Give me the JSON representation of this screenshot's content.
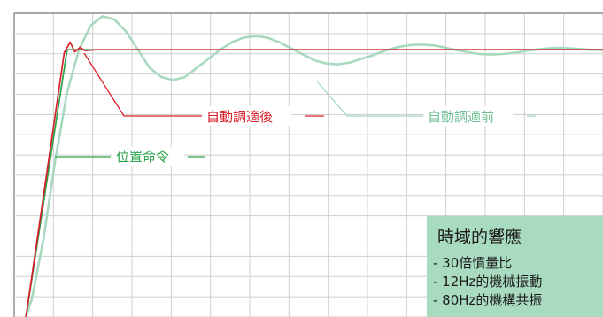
{
  "chart_data": {
    "type": "line",
    "xlim": [
      0,
      1
    ],
    "ylim": [
      0,
      1
    ],
    "grid": true,
    "series": [
      {
        "color": "#2aa14a",
        "points": [
          [
            0.02,
            0.0
          ],
          [
            0.09,
            0.88
          ],
          [
            1.0,
            0.88
          ]
        ]
      },
      {
        "color": "#d9202a",
        "points": [
          [
            0.02,
            0.0
          ],
          [
            0.085,
            0.87
          ],
          [
            0.095,
            0.905
          ],
          [
            0.103,
            0.873
          ],
          [
            0.112,
            0.888
          ],
          [
            0.12,
            0.877
          ],
          [
            0.14,
            0.88
          ],
          [
            1.0,
            0.88
          ]
        ]
      },
      {
        "color": "#a8d9bf",
        "points": [
          [
            0.02,
            0.0
          ],
          [
            0.03,
            0.06
          ],
          [
            0.05,
            0.26
          ],
          [
            0.07,
            0.52
          ],
          [
            0.09,
            0.74
          ],
          [
            0.11,
            0.88
          ],
          [
            0.13,
            0.96
          ],
          [
            0.15,
            0.99
          ],
          [
            0.17,
            0.98
          ],
          [
            0.19,
            0.94
          ],
          [
            0.21,
            0.88
          ],
          [
            0.23,
            0.82
          ],
          [
            0.25,
            0.79
          ],
          [
            0.27,
            0.78
          ],
          [
            0.29,
            0.79
          ],
          [
            0.31,
            0.82
          ],
          [
            0.33,
            0.85
          ],
          [
            0.35,
            0.88
          ],
          [
            0.37,
            0.905
          ],
          [
            0.39,
            0.92
          ],
          [
            0.41,
            0.925
          ],
          [
            0.43,
            0.92
          ],
          [
            0.45,
            0.905
          ],
          [
            0.47,
            0.885
          ],
          [
            0.49,
            0.865
          ],
          [
            0.51,
            0.845
          ],
          [
            0.53,
            0.835
          ],
          [
            0.55,
            0.832
          ],
          [
            0.57,
            0.838
          ],
          [
            0.59,
            0.85
          ],
          [
            0.61,
            0.862
          ],
          [
            0.63,
            0.877
          ],
          [
            0.65,
            0.888
          ],
          [
            0.67,
            0.895
          ],
          [
            0.69,
            0.897
          ],
          [
            0.71,
            0.895
          ],
          [
            0.73,
            0.888
          ],
          [
            0.75,
            0.879
          ],
          [
            0.77,
            0.872
          ],
          [
            0.79,
            0.866
          ],
          [
            0.81,
            0.864
          ],
          [
            0.83,
            0.866
          ],
          [
            0.85,
            0.87
          ],
          [
            0.87,
            0.876
          ],
          [
            0.89,
            0.881
          ],
          [
            0.91,
            0.885
          ],
          [
            0.93,
            0.886
          ],
          [
            0.95,
            0.884
          ],
          [
            0.97,
            0.881
          ],
          [
            0.99,
            0.879
          ],
          [
            1.0,
            0.879
          ]
        ]
      }
    ],
    "annotations": [
      {
        "text": "位置命令",
        "color": "#2aa14a"
      },
      {
        "text": "自動調適後",
        "color": "#d9202a"
      },
      {
        "text": "自動調適前",
        "color": "#6fbf94"
      }
    ],
    "info_box": {
      "title": "時域的響應",
      "background": "#a9dbc0",
      "lines": [
        "- 30倍慣量比",
        "- 12Hz的機械振動",
        "- 80Hz的機構共振"
      ]
    }
  }
}
